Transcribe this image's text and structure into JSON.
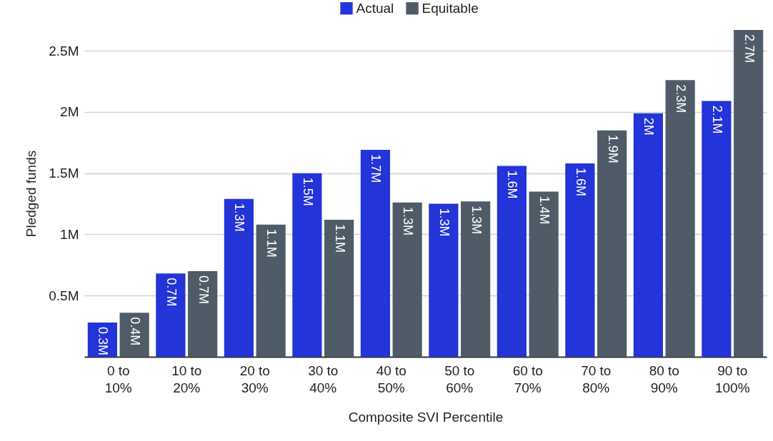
{
  "chart_data": {
    "type": "bar",
    "xlabel": "Composite SVI Percentile",
    "ylabel": "Pledged funds",
    "categories": [
      "0 to 10%",
      "10 to 20%",
      "20 to 30%",
      "30 to 40%",
      "40 to 50%",
      "50 to 60%",
      "60 to 70%",
      "70 to 80%",
      "80 to 90%",
      "90 to 100%"
    ],
    "series": [
      {
        "name": "Actual",
        "color": "#2334d8",
        "values": [
          0.28,
          0.68,
          1.29,
          1.5,
          1.69,
          1.25,
          1.56,
          1.58,
          1.99,
          2.09
        ],
        "value_labels": [
          "0.3M",
          "0.7M",
          "1.3M",
          "1.5M",
          "1.7M",
          "1.3M",
          "1.6M",
          "1.6M",
          "2M",
          "2.1M"
        ]
      },
      {
        "name": "Equitable",
        "color": "#4f5c68",
        "values": [
          0.36,
          0.7,
          1.08,
          1.12,
          1.26,
          1.27,
          1.35,
          1.85,
          2.26,
          2.67
        ],
        "value_labels": [
          "0.4M",
          "0.7M",
          "1.1M",
          "1.1M",
          "1.3M",
          "1.3M",
          "1.4M",
          "1.9M",
          "2.3M",
          "2.7M"
        ]
      }
    ],
    "yticks": [
      {
        "value": 0.5,
        "label": "0.5M"
      },
      {
        "value": 1,
        "label": "1M"
      },
      {
        "value": 1.5,
        "label": "1.5M"
      },
      {
        "value": 2,
        "label": "2M"
      },
      {
        "value": 2.5,
        "label": "2.5M"
      }
    ],
    "ylim": [
      0,
      2.67
    ],
    "grid": "y",
    "legend": "top"
  }
}
